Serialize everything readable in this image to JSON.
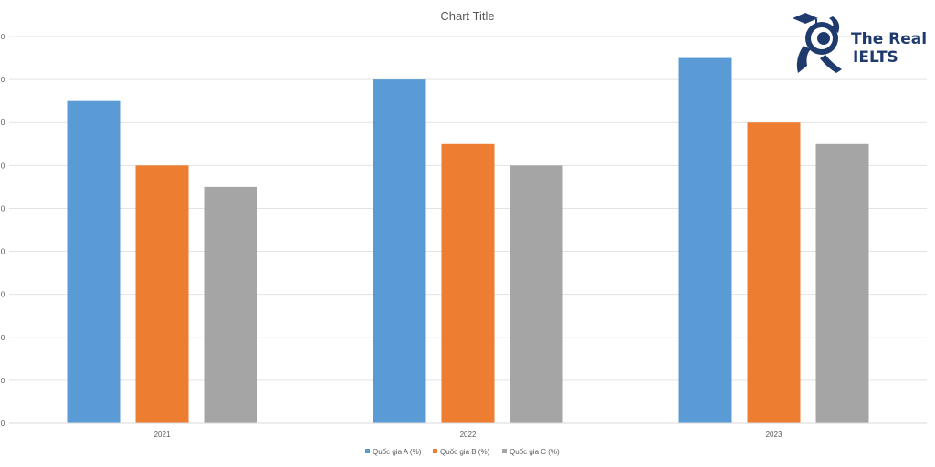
{
  "chart_data": {
    "type": "bar",
    "title": "Chart Title",
    "categories": [
      "2021",
      "2022",
      "2023"
    ],
    "series": [
      {
        "name": "Quốc gia A (%)",
        "color": "#5b9bd5",
        "values": [
          75,
          80,
          85
        ]
      },
      {
        "name": "Quốc gia B (%)",
        "color": "#ed7d31",
        "values": [
          60,
          65,
          70
        ]
      },
      {
        "name": "Quốc gia C (%)",
        "color": "#a5a5a5",
        "values": [
          55,
          60,
          65
        ]
      }
    ],
    "y_tick_labels": [
      "0",
      "0",
      "0",
      "0",
      "0",
      "0",
      "0",
      "0",
      "0",
      "0"
    ],
    "ylim": [
      0,
      90
    ],
    "grid": true,
    "legend": "bottom",
    "xlabel": "",
    "ylabel": ""
  },
  "logo": {
    "line1": "The Real",
    "line2": "IELTS"
  }
}
